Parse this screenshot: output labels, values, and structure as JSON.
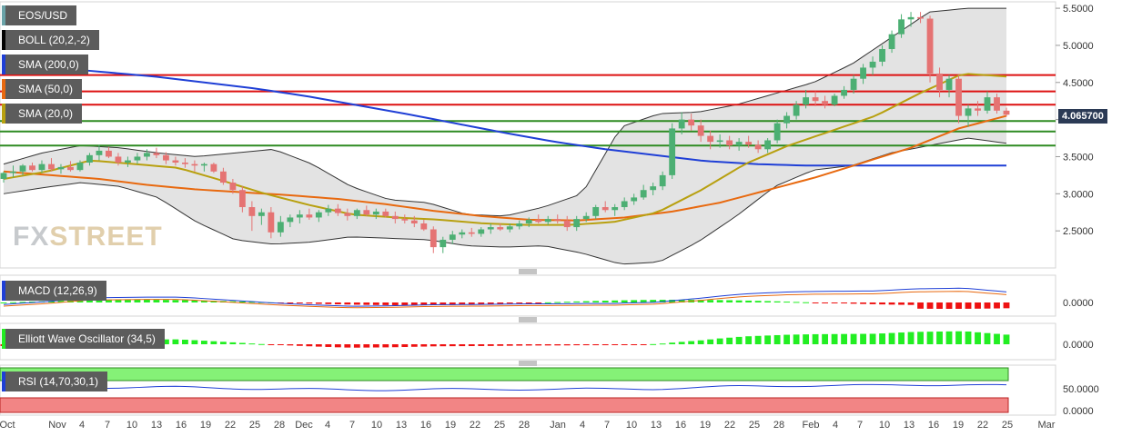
{
  "legends": {
    "symbol": "EOS/USD",
    "boll": "BOLL (20,2,-2)",
    "sma200": "SMA (200,0)",
    "sma50": "SMA (50,0)",
    "sma20": "SMA (20,0)",
    "macd": "MACD (12,26,9)",
    "ewo": "Elliott Wave Oscillator (34,5)",
    "rsi": "RSI (14,70,30,1)"
  },
  "watermark": {
    "part1": "FX",
    "part2": "STREET"
  },
  "price_tag": "4.065700",
  "colors": {
    "bull": "#4caf73",
    "bear": "#e57373",
    "sma200": "#1f3fd6",
    "sma50": "#e8690f",
    "sma20": "#b8a010",
    "boll_fill": "#dcdcdc",
    "hline_red": "#dd1111",
    "hline_green": "#2e8b22",
    "osc_pos": "#22ee22",
    "osc_neg": "#ee1111"
  },
  "chart_data": {
    "type": "candlestick",
    "symbol": "EOS/USD",
    "price_axis": {
      "ticks": [
        5.5,
        5.0,
        4.5,
        4.0,
        3.5,
        3.0,
        2.5
      ],
      "labels": [
        "5.5000",
        "5.0000",
        "4.5000",
        "4.0000",
        "3.5000",
        "3.0000",
        "2.5000"
      ],
      "ylim": [
        2.0,
        5.55
      ]
    },
    "x_labels": [
      "Oct",
      "Nov",
      "4",
      "7",
      "10",
      "13",
      "16",
      "19",
      "22",
      "25",
      "28",
      "Dec",
      "4",
      "7",
      "10",
      "13",
      "16",
      "19",
      "22",
      "25",
      "28",
      "Jan",
      "4",
      "7",
      "10",
      "13",
      "16",
      "19",
      "22",
      "25",
      "28",
      "Feb",
      "4",
      "7",
      "10",
      "13",
      "16",
      "19",
      "22",
      "25",
      "Mar"
    ],
    "horizontal_levels": {
      "red": [
        4.6,
        4.38,
        4.2
      ],
      "green": [
        3.98,
        3.84,
        3.65
      ]
    },
    "candles": [
      [
        3.2,
        3.3,
        3.15,
        3.28
      ],
      [
        3.28,
        3.38,
        3.22,
        3.3
      ],
      [
        3.3,
        3.4,
        3.25,
        3.38
      ],
      [
        3.38,
        3.42,
        3.3,
        3.32
      ],
      [
        3.32,
        3.45,
        3.28,
        3.4
      ],
      [
        3.4,
        3.48,
        3.3,
        3.33
      ],
      [
        3.33,
        3.4,
        3.27,
        3.36
      ],
      [
        3.36,
        3.44,
        3.3,
        3.32
      ],
      [
        3.32,
        3.45,
        3.3,
        3.42
      ],
      [
        3.42,
        3.55,
        3.38,
        3.52
      ],
      [
        3.52,
        3.66,
        3.45,
        3.58
      ],
      [
        3.58,
        3.63,
        3.48,
        3.5
      ],
      [
        3.5,
        3.55,
        3.38,
        3.42
      ],
      [
        3.42,
        3.5,
        3.36,
        3.45
      ],
      [
        3.45,
        3.55,
        3.4,
        3.5
      ],
      [
        3.5,
        3.6,
        3.45,
        3.55
      ],
      [
        3.55,
        3.62,
        3.48,
        3.52
      ],
      [
        3.52,
        3.56,
        3.4,
        3.45
      ],
      [
        3.45,
        3.5,
        3.38,
        3.42
      ],
      [
        3.42,
        3.48,
        3.35,
        3.4
      ],
      [
        3.4,
        3.45,
        3.3,
        3.38
      ],
      [
        3.38,
        3.42,
        3.3,
        3.4
      ],
      [
        3.4,
        3.42,
        3.28,
        3.3
      ],
      [
        3.3,
        3.35,
        3.12,
        3.15
      ],
      [
        3.15,
        3.2,
        3.0,
        3.05
      ],
      [
        3.05,
        3.1,
        2.75,
        2.82
      ],
      [
        2.82,
        2.9,
        2.5,
        2.7
      ],
      [
        2.7,
        2.8,
        2.58,
        2.75
      ],
      [
        2.75,
        2.82,
        2.4,
        2.48
      ],
      [
        2.48,
        2.7,
        2.42,
        2.62
      ],
      [
        2.62,
        2.72,
        2.55,
        2.68
      ],
      [
        2.68,
        2.78,
        2.6,
        2.72
      ],
      [
        2.72,
        2.8,
        2.65,
        2.68
      ],
      [
        2.68,
        2.78,
        2.62,
        2.75
      ],
      [
        2.75,
        2.85,
        2.7,
        2.8
      ],
      [
        2.8,
        2.86,
        2.7,
        2.74
      ],
      [
        2.74,
        2.8,
        2.64,
        2.7
      ],
      [
        2.7,
        2.8,
        2.66,
        2.78
      ],
      [
        2.78,
        2.84,
        2.7,
        2.72
      ],
      [
        2.72,
        2.8,
        2.66,
        2.76
      ],
      [
        2.76,
        2.8,
        2.68,
        2.7
      ],
      [
        2.7,
        2.76,
        2.6,
        2.66
      ],
      [
        2.66,
        2.72,
        2.6,
        2.64
      ],
      [
        2.64,
        2.7,
        2.55,
        2.6
      ],
      [
        2.6,
        2.65,
        2.5,
        2.52
      ],
      [
        2.52,
        2.56,
        2.2,
        2.28
      ],
      [
        2.28,
        2.42,
        2.2,
        2.38
      ],
      [
        2.38,
        2.5,
        2.32,
        2.45
      ],
      [
        2.45,
        2.52,
        2.4,
        2.48
      ],
      [
        2.48,
        2.54,
        2.42,
        2.46
      ],
      [
        2.46,
        2.55,
        2.42,
        2.52
      ],
      [
        2.52,
        2.6,
        2.46,
        2.55
      ],
      [
        2.55,
        2.6,
        2.5,
        2.52
      ],
      [
        2.52,
        2.6,
        2.48,
        2.56
      ],
      [
        2.56,
        2.64,
        2.52,
        2.6
      ],
      [
        2.6,
        2.68,
        2.55,
        2.65
      ],
      [
        2.65,
        2.72,
        2.6,
        2.62
      ],
      [
        2.62,
        2.7,
        2.58,
        2.66
      ],
      [
        2.66,
        2.72,
        2.6,
        2.64
      ],
      [
        2.64,
        2.7,
        2.5,
        2.55
      ],
      [
        2.55,
        2.7,
        2.5,
        2.66
      ],
      [
        2.66,
        2.75,
        2.62,
        2.7
      ],
      [
        2.7,
        2.85,
        2.66,
        2.82
      ],
      [
        2.82,
        2.9,
        2.75,
        2.78
      ],
      [
        2.78,
        2.86,
        2.7,
        2.82
      ],
      [
        2.82,
        2.95,
        2.78,
        2.9
      ],
      [
        2.9,
        3.0,
        2.85,
        2.95
      ],
      [
        2.95,
        3.12,
        2.92,
        3.05
      ],
      [
        3.05,
        3.15,
        2.98,
        3.1
      ],
      [
        3.1,
        3.3,
        3.05,
        3.25
      ],
      [
        3.25,
        3.95,
        3.2,
        3.88
      ],
      [
        3.88,
        4.1,
        3.8,
        4.0
      ],
      [
        4.0,
        4.08,
        3.85,
        3.92
      ],
      [
        3.92,
        4.0,
        3.7,
        3.78
      ],
      [
        3.78,
        3.85,
        3.6,
        3.7
      ],
      [
        3.7,
        3.8,
        3.62,
        3.72
      ],
      [
        3.72,
        3.78,
        3.6,
        3.65
      ],
      [
        3.65,
        3.75,
        3.58,
        3.7
      ],
      [
        3.7,
        3.78,
        3.62,
        3.66
      ],
      [
        3.66,
        3.72,
        3.55,
        3.6
      ],
      [
        3.6,
        3.75,
        3.55,
        3.72
      ],
      [
        3.72,
        4.0,
        3.68,
        3.95
      ],
      [
        3.95,
        4.1,
        3.88,
        4.05
      ],
      [
        4.05,
        4.25,
        4.0,
        4.2
      ],
      [
        4.2,
        4.4,
        4.15,
        4.3
      ],
      [
        4.3,
        4.38,
        4.18,
        4.25
      ],
      [
        4.25,
        4.32,
        4.15,
        4.2
      ],
      [
        4.2,
        4.35,
        4.18,
        4.32
      ],
      [
        4.32,
        4.45,
        4.28,
        4.4
      ],
      [
        4.4,
        4.6,
        4.35,
        4.55
      ],
      [
        4.55,
        4.75,
        4.48,
        4.7
      ],
      [
        4.7,
        4.85,
        4.6,
        4.78
      ],
      [
        4.78,
        5.0,
        4.72,
        4.95
      ],
      [
        4.95,
        5.2,
        4.9,
        5.15
      ],
      [
        5.15,
        5.42,
        5.1,
        5.35
      ],
      [
        5.35,
        5.45,
        5.25,
        5.38
      ],
      [
        5.38,
        5.45,
        5.3,
        5.36
      ],
      [
        5.36,
        5.4,
        4.5,
        4.62
      ],
      [
        4.62,
        4.7,
        4.3,
        4.4
      ],
      [
        4.4,
        4.6,
        4.3,
        4.55
      ],
      [
        4.55,
        4.6,
        3.95,
        4.05
      ],
      [
        4.05,
        4.2,
        3.9,
        4.15
      ],
      [
        4.15,
        4.25,
        4.05,
        4.12
      ],
      [
        4.12,
        4.38,
        4.08,
        4.3
      ],
      [
        4.3,
        4.35,
        4.08,
        4.12
      ],
      [
        4.12,
        4.16,
        4.04,
        4.0657
      ]
    ],
    "sma200_series": [
      4.75,
      4.7,
      4.64,
      4.58,
      4.5,
      4.42,
      4.32,
      4.2,
      4.08,
      3.95,
      3.82,
      3.7,
      3.6,
      3.52,
      3.44,
      3.4,
      3.38,
      3.38,
      3.38,
      3.38,
      3.38
    ],
    "sma50_series": [
      3.3,
      3.25,
      3.2,
      3.12,
      3.06,
      3.02,
      2.98,
      2.93,
      2.86,
      2.77,
      2.7,
      2.65,
      2.64,
      2.68,
      2.76,
      2.88,
      3.05,
      3.22,
      3.42,
      3.62,
      3.88,
      4.05
    ],
    "sma20_series": [
      3.2,
      3.3,
      3.45,
      3.4,
      3.35,
      3.18,
      3.0,
      2.85,
      2.72,
      2.68,
      2.65,
      2.6,
      2.58,
      2.58,
      2.62,
      2.75,
      3.05,
      3.4,
      3.65,
      3.85,
      4.05,
      4.35,
      4.62,
      4.58
    ],
    "boll_upper": [
      3.4,
      3.55,
      3.65,
      3.62,
      3.55,
      3.5,
      3.55,
      3.6,
      3.4,
      3.1,
      2.92,
      2.88,
      2.72,
      2.7,
      2.82,
      3.0,
      3.9,
      4.08,
      4.1,
      4.2,
      4.35,
      4.5,
      4.75,
      5.1,
      5.45,
      5.5,
      5.5
    ],
    "boll_lower": [
      3.0,
      3.08,
      3.15,
      3.1,
      2.95,
      2.62,
      2.38,
      2.32,
      2.35,
      2.42,
      2.4,
      2.38,
      2.3,
      2.28,
      2.3,
      2.2,
      2.05,
      2.08,
      2.35,
      2.7,
      3.1,
      3.32,
      3.38,
      3.55,
      3.65,
      3.75,
      3.68
    ],
    "macd": {
      "ticks": [
        0.0
      ],
      "labels": [
        "0.0000"
      ]
    },
    "ewo": {
      "ticks": [
        0.0
      ],
      "labels": [
        "0.0000"
      ]
    },
    "rsi": {
      "ticks": [
        50.0,
        0.0
      ],
      "labels": [
        "50.0000",
        "0.0000"
      ]
    }
  }
}
